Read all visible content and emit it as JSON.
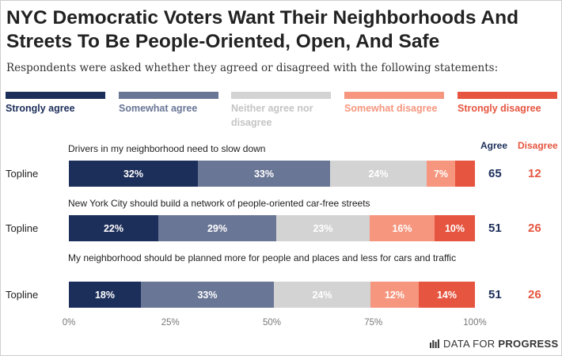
{
  "title": "NYC Democratic Voters Want Their Neighborhoods And Streets To Be People-Oriented, Open, And Safe",
  "subtitle": "Respondents were asked whether they agreed or disagreed with the following statements:",
  "legend": [
    {
      "label": "Strongly agree",
      "color": "#1c2e5a",
      "text_color": "#1c2e5a"
    },
    {
      "label": "Somewhat agree",
      "color": "#6a7696",
      "text_color": "#6a7696"
    },
    {
      "label": "Neither agree nor disagree",
      "color": "#d3d3d3",
      "text_color": "#c4c4c4"
    },
    {
      "label": "Somewhat disagree",
      "color": "#f6967e",
      "text_color": "#f6967e"
    },
    {
      "label": "Strongly disagree",
      "color": "#e6553f",
      "text_color": "#e6553f"
    }
  ],
  "net_headers": {
    "agree": "Agree",
    "disagree": "Disagree"
  },
  "brand": {
    "prefix": "DATA FOR ",
    "bold": "PROGRESS"
  },
  "chart_data": {
    "type": "bar",
    "orientation": "horizontal-stacked",
    "categories": [
      "Drivers in my neighborhood need to slow down",
      "New York City should build a network of people-oriented car-free streets",
      "My neighborhood should be planned more for people and places and less for cars and traffic"
    ],
    "row_label": "Topline",
    "series": [
      {
        "name": "Strongly agree",
        "values": [
          32,
          22,
          18
        ],
        "labels": [
          "32%",
          "22%",
          "18%"
        ]
      },
      {
        "name": "Somewhat agree",
        "values": [
          33,
          29,
          33
        ],
        "labels": [
          "33%",
          "29%",
          "33%"
        ]
      },
      {
        "name": "Neither agree nor disagree",
        "values": [
          24,
          23,
          24
        ],
        "labels": [
          "24%",
          "23%",
          "24%"
        ]
      },
      {
        "name": "Somewhat disagree",
        "values": [
          7,
          16,
          12
        ],
        "labels": [
          "7%",
          "16%",
          "12%"
        ]
      },
      {
        "name": "Strongly disagree",
        "values": [
          5,
          10,
          14
        ],
        "labels": [
          "",
          "10%",
          "14%"
        ]
      }
    ],
    "net_agree": [
      "65",
      "51",
      "51"
    ],
    "net_disagree": [
      "12",
      "26",
      "26"
    ],
    "xlim": [
      0,
      100
    ],
    "xticks": [
      "0%",
      "25%",
      "50%",
      "75%",
      "100%"
    ],
    "grid": false
  }
}
